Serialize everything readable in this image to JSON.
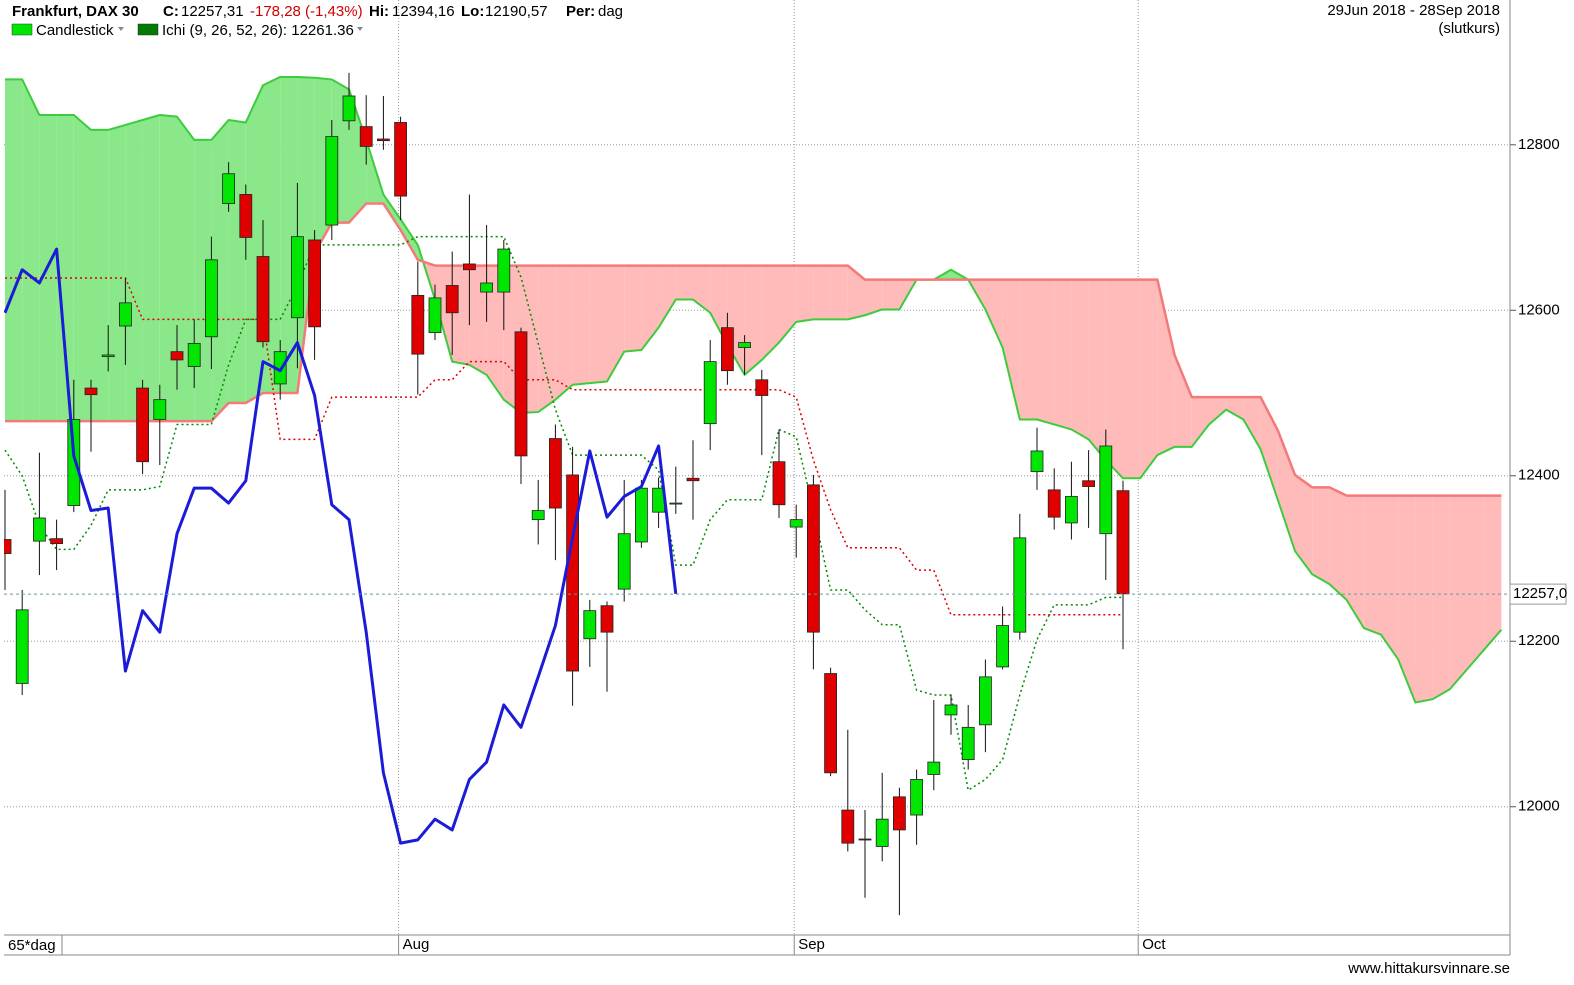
{
  "chart_data": {
    "type": "candlestick",
    "title": "Frankfurt, DAX 30",
    "stats": [
      {
        "label": "C:",
        "value": "12257,31"
      },
      {
        "label": "",
        "value": "-178,28 (-1,43%)"
      },
      {
        "label": "Hi:",
        "value": "12394,16"
      },
      {
        "label": "Lo:",
        "value": "12190,57"
      },
      {
        "label": "Per:",
        "value": "dag"
      }
    ],
    "date_range": "29Jun 2018 - 28Sep 2018",
    "price_type": "(slutkurs)",
    "period_label": "65*dag",
    "source": "www.hittakursvinnare.se",
    "ylim": [
      11845,
      12975
    ],
    "yticks": [
      12000,
      12200,
      12400,
      12600,
      12800
    ],
    "grid": true,
    "last_price": {
      "value": 12257,
      "label": "12257,0"
    },
    "categories": [
      null,
      null,
      null,
      null,
      null,
      null,
      null,
      null,
      null,
      null,
      null,
      null,
      null,
      null,
      null,
      null,
      null,
      null,
      null,
      null,
      null,
      null,
      null,
      "Aug",
      null,
      null,
      null,
      null,
      null,
      null,
      null,
      null,
      null,
      null,
      null,
      null,
      null,
      null,
      null,
      null,
      null,
      null,
      null,
      null,
      null,
      null,
      "Sep",
      null,
      null,
      null,
      null,
      null,
      null,
      null,
      null,
      null,
      null,
      null,
      null,
      null,
      null,
      null,
      null,
      null,
      null,
      null,
      "Oct",
      null,
      null,
      null,
      null,
      null,
      null,
      null,
      null,
      null,
      null,
      null,
      null,
      null,
      null,
      null,
      null,
      null,
      null,
      null,
      null,
      null
    ],
    "series": [
      {
        "name": "Candlestick",
        "color": "#00e600",
        "down_color": "#e00000",
        "open": [
          12323,
          12149,
          12321,
          12324,
          12364,
          12506,
          12544,
          12581,
          12506,
          12468,
          12550,
          12532,
          12568,
          12729,
          12740,
          12665,
          12511,
          12591,
          12685,
          12703,
          12829,
          12822,
          12807,
          12827,
          12618,
          12573,
          12630,
          12656,
          12622,
          12622,
          12574,
          12347,
          12445,
          12401,
          12203,
          12243,
          12263,
          12320,
          12356,
          12366,
          12397,
          12463,
          12579,
          12555,
          12516,
          12417,
          12338,
          12389,
          12161,
          11996,
          11961,
          11952,
          12012,
          11990,
          12039,
          12111,
          12057,
          12099,
          12169,
          12211,
          12405,
          12383,
          12343,
          12394,
          12330,
          12382,
          null,
          null,
          null,
          null,
          null,
          null,
          null,
          null,
          null,
          null,
          null,
          null,
          null,
          null,
          null,
          null,
          null,
          null,
          null,
          null,
          null,
          null
        ],
        "high": [
          12383,
          12262,
          12428,
          12347,
          12516,
          12516,
          12582,
          12639,
          12516,
          12510,
          12582,
          12589,
          12689,
          12779,
          12752,
          12709,
          12564,
          12754,
          12697,
          12830,
          12887,
          12860,
          12859,
          12834,
          12659,
          12631,
          12671,
          12740,
          12703,
          12685,
          12579,
          12395,
          12462,
          12435,
          12250,
          12248,
          12395,
          12395,
          12398,
          12411,
          12443,
          12564,
          12597,
          12570,
          12528,
          12456,
          12365,
          12401,
          12168,
          12093,
          11996,
          12041,
          12023,
          12045,
          12129,
          12135,
          12123,
          12178,
          12242,
          12354,
          12458,
          12409,
          12417,
          12431,
          12456,
          12394.16,
          null,
          null,
          null,
          null,
          null,
          null,
          null,
          null,
          null,
          null,
          null,
          null,
          null,
          null,
          null,
          null,
          null,
          null,
          null,
          null,
          null,
          null
        ],
        "low": [
          12262,
          12135,
          12280,
          12286,
          12356,
          12429,
          12526,
          12534,
          12402,
          12413,
          12504,
          12506,
          12529,
          12719,
          12661,
          12555,
          12492,
          12530,
          12540,
          12685,
          12818,
          12776,
          12794,
          12709,
          12498,
          12564,
          12546,
          12582,
          12586,
          12576,
          12390,
          12317,
          12298,
          12122,
          12169,
          12139,
          12248,
          12313,
          12337,
          12354,
          12347,
          12431,
          12510,
          12522,
          12425,
          12349,
          12301,
          12166,
          12037,
          11946,
          11890,
          11934,
          11869,
          11954,
          12020,
          12087,
          12045,
          12066,
          12166,
          12202,
          12383,
          12335,
          12323,
          12337,
          12274,
          12190.57,
          null,
          null,
          null,
          null,
          null,
          null,
          null,
          null,
          null,
          null,
          null,
          null,
          null,
          null,
          null,
          null,
          null,
          null,
          null,
          null,
          null,
          null
        ],
        "close": [
          12306,
          12238,
          12349,
          12318,
          12468,
          12498,
          12546,
          12609,
          12417,
          12492,
          12540,
          12560,
          12661,
          12765,
          12688,
          12562,
          12550,
          12689,
          12580,
          12810,
          12859,
          12798,
          12805,
          12738,
          12547,
          12615,
          12597,
          12649,
          12633,
          12674,
          12424,
          12358,
          12361,
          12164,
          12237,
          12211,
          12330,
          12385,
          12385,
          12367,
          12394,
          12538,
          12527,
          12561,
          12497,
          12365,
          12347,
          12211,
          12041,
          11956,
          11960,
          11985,
          11972,
          12033,
          12054,
          12123,
          12096,
          12157,
          12219,
          12325,
          12430,
          12350,
          12375,
          12387,
          12436,
          12257.31,
          null,
          null,
          null,
          null,
          null,
          null,
          null,
          null,
          null,
          null,
          null,
          null,
          null,
          null,
          null,
          null,
          null,
          null,
          null,
          null,
          null,
          null
        ]
      },
      {
        "name": "Ichi (9, 26, 52, 26): 12261.36",
        "color": "#007a00",
        "cloud_up_color": "#8ae88a",
        "cloud_down_color": "#ffbaba",
        "senkou_a_color": "#3ccc3c",
        "senkou_b_color": "#f47a7a",
        "tenkan_color": "#e00000",
        "kijun_color": "#008a00",
        "chikou_color": "#1c1cd8",
        "tenkan": [
          12639,
          12639,
          12639,
          12639,
          12639,
          12639,
          12639,
          12639,
          12589,
          12589,
          12589,
          12589,
          12589,
          12589,
          12589,
          12589,
          12444,
          12444,
          12444,
          12495,
          12495,
          12495,
          12495,
          12495,
          12495,
          12516,
          12516,
          12538,
          12538,
          12538,
          12516,
          12516,
          12516,
          12504,
          12504,
          12504,
          12504,
          12504,
          12504,
          12504,
          12504,
          12504,
          12504,
          12504,
          12504,
          12504,
          12495,
          12419,
          12359,
          12313,
          12313,
          12313,
          12313,
          12286,
          12286,
          12232,
          12232,
          12232,
          12232,
          12232,
          12232,
          12232,
          12232,
          12232,
          12232,
          12232,
          null,
          null,
          null,
          null,
          null,
          null,
          null,
          null,
          null,
          null,
          null,
          null,
          null,
          null,
          null,
          null,
          null,
          null,
          null,
          null,
          null,
          null
        ],
        "kijun": [
          12431,
          12400,
          12340,
          12311,
          12311,
          12340,
          12383,
          12383,
          12383,
          12387,
          12462,
          12462,
          12462,
          12534,
          12589,
          12589,
          12589,
          12630,
          12679,
          12679,
          12679,
          12679,
          12679,
          12679,
          12689,
          12689,
          12689,
          12689,
          12689,
          12689,
          12640,
          12560,
          12480,
          12425,
          12425,
          12425,
          12425,
          12425,
          12407,
          12292,
          12292,
          12347,
          12371,
          12371,
          12371,
          12456,
          12447,
          12359,
          12262,
          12262,
          12238,
          12220,
          12220,
          12141,
          12135,
          12135,
          12020,
          12033,
          12057,
          12135,
          12202,
          12244,
          12244,
          12244,
          12253,
          12253,
          null,
          null,
          null,
          null,
          null,
          null,
          null,
          null,
          null,
          null,
          null,
          null,
          null,
          null,
          null,
          null,
          null,
          null,
          null,
          null,
          null,
          null
        ],
        "chikou": [
          12597,
          12649,
          12633,
          12674,
          12424,
          12358,
          12361,
          12164,
          12237,
          12211,
          12330,
          12385,
          12385,
          12367,
          12394,
          12538,
          12527,
          12561,
          12497,
          12365,
          12347,
          12211,
          12041,
          11956,
          11960,
          11985,
          11972,
          12033,
          12054,
          12123,
          12096,
          12157,
          12219,
          12325,
          12430,
          12350,
          12375,
          12387,
          12436,
          12257.31,
          null,
          null,
          null,
          null,
          null,
          null,
          null,
          null,
          null,
          null,
          null,
          null,
          null,
          null,
          null,
          null,
          null,
          null,
          null,
          null,
          null,
          null,
          null,
          null,
          null,
          null,
          null,
          null,
          null,
          null,
          null,
          null,
          null,
          null,
          null,
          null,
          null,
          null,
          null,
          null,
          null,
          null,
          null,
          null,
          null,
          null,
          null,
          null
        ],
        "senkou_a": [
          12879,
          12879,
          12836,
          12836,
          12836,
          12818,
          12818,
          12824,
          12830,
          12836,
          12834,
          12806,
          12806,
          12830,
          12827,
          12872,
          12882,
          12882,
          12881,
          12879,
          12867,
          12806,
          12740,
          12710,
          12679,
          12613,
          12538,
          12534,
          12522,
          12492,
          12476,
          12477,
          12492,
          12510,
          12512,
          12514,
          12550,
          12552,
          12579,
          12613,
          12613,
          12597,
          12558,
          12522,
          12540,
          12561,
          12586,
          12589,
          12589,
          12589,
          12594,
          12601,
          12601,
          12637,
          12637,
          12649,
          12637,
          12601,
          12555,
          12468,
          12468,
          12462,
          12456,
          12444,
          12419,
          12397,
          12397,
          12425,
          12435,
          12435,
          12462,
          12480,
          12468,
          12432,
          12371,
          12309,
          12281,
          12269,
          12250,
          12216,
          12208,
          12178,
          12126,
          12130,
          12142,
          12166,
          12190,
          12214
        ],
        "senkou_b": [
          12466,
          12466,
          12466,
          12466,
          12466,
          12466,
          12466,
          12466,
          12466,
          12466,
          12466,
          12466,
          12466,
          12488,
          12488,
          12500,
          12500,
          12500,
          12669,
          12706,
          12706,
          12729,
          12729,
          12697,
          12661,
          12654,
          12654,
          12654,
          12654,
          12654,
          12654,
          12654,
          12654,
          12654,
          12654,
          12654,
          12654,
          12654,
          12654,
          12654,
          12654,
          12654,
          12654,
          12654,
          12654,
          12654,
          12654,
          12654,
          12654,
          12654,
          12637,
          12637,
          12637,
          12637,
          12637,
          12637,
          12637,
          12637,
          12637,
          12637,
          12637,
          12637,
          12637,
          12637,
          12637,
          12637,
          12637,
          12637,
          12546,
          12495,
          12495,
          12495,
          12495,
          12495,
          12455,
          12401,
          12386,
          12386,
          12376,
          12376,
          12376,
          12376,
          12376,
          12376,
          12376,
          12376,
          12376,
          12376
        ]
      }
    ]
  }
}
